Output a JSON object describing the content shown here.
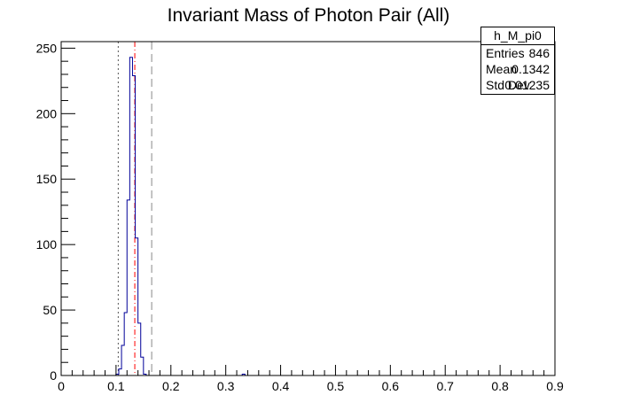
{
  "chart_data": {
    "type": "bar",
    "title": "Invariant Mass of Photon Pair (All)",
    "xlabel": "",
    "ylabel": "",
    "xlim": [
      0,
      0.9
    ],
    "ylim": [
      0,
      255
    ],
    "x_ticks": [
      "0",
      "0.1",
      "0.2",
      "0.3",
      "0.4",
      "0.5",
      "0.6",
      "0.7",
      "0.8",
      "0.9"
    ],
    "y_ticks": [
      "0",
      "50",
      "100",
      "150",
      "200",
      "250"
    ],
    "bin_edges_start": 0,
    "bin_width": 0.005,
    "bin_values": [
      0,
      0,
      0,
      0,
      0,
      0,
      0,
      0,
      0,
      0,
      0,
      0,
      0,
      0,
      0,
      0,
      0,
      0,
      0,
      0,
      1,
      5,
      23,
      48,
      134,
      243,
      229,
      105,
      40,
      14,
      1,
      0,
      0,
      0,
      0,
      0,
      0,
      0,
      0,
      0,
      0,
      0,
      0,
      0,
      0,
      0,
      0,
      0,
      0,
      0,
      0,
      0,
      0,
      0,
      0,
      0,
      0,
      0,
      0,
      0,
      0,
      0,
      0,
      0,
      0,
      0,
      1,
      0,
      0,
      0
    ],
    "vertical_lines": [
      {
        "x": 0.104,
        "style": "dotted",
        "color": "#555555"
      },
      {
        "x": 0.1342,
        "style": "dashdot",
        "color": "#ff0000"
      },
      {
        "x": 0.165,
        "style": "dashed",
        "color": "#888888"
      }
    ],
    "line_color": "#000099"
  },
  "stats": {
    "name": "h_M_pi0",
    "rows": [
      {
        "label": "Entries",
        "value": "846"
      },
      {
        "label": "Mean",
        "value": "0.1342"
      },
      {
        "label": "Std Dev",
        "value": "0.01235"
      }
    ]
  }
}
